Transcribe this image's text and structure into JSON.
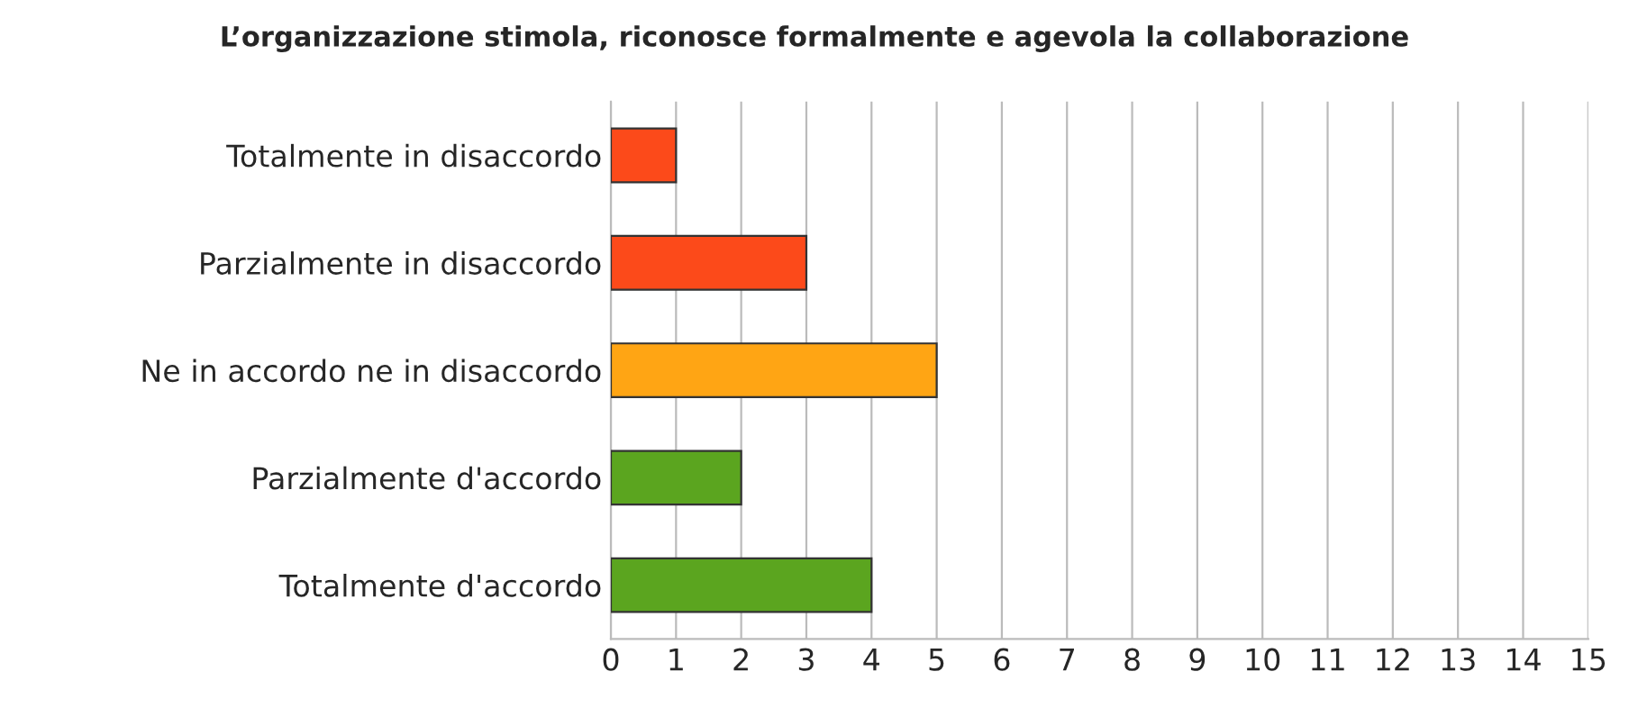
{
  "chart_data": {
    "type": "bar",
    "orientation": "horizontal",
    "title": "L’organizzazione stimola, riconosce formalmente e agevola la collaborazione",
    "categories": [
      "Totalmente in disaccordo",
      "Parzialmente in disaccordo",
      "Ne in accordo ne in disaccordo",
      "Parzialmente d'accordo",
      "Totalmente d'accordo"
    ],
    "values": [
      1,
      3,
      5,
      2,
      4
    ],
    "colors": [
      "#fc4a1a",
      "#fc4a1a",
      "#ffa514",
      "#5ba51f",
      "#5ba51f"
    ],
    "xlim": [
      0,
      15
    ],
    "xticks": [
      0,
      1,
      2,
      3,
      4,
      5,
      6,
      7,
      8,
      9,
      10,
      11,
      12,
      13,
      14,
      15
    ],
    "grid": "x",
    "legend": false
  }
}
